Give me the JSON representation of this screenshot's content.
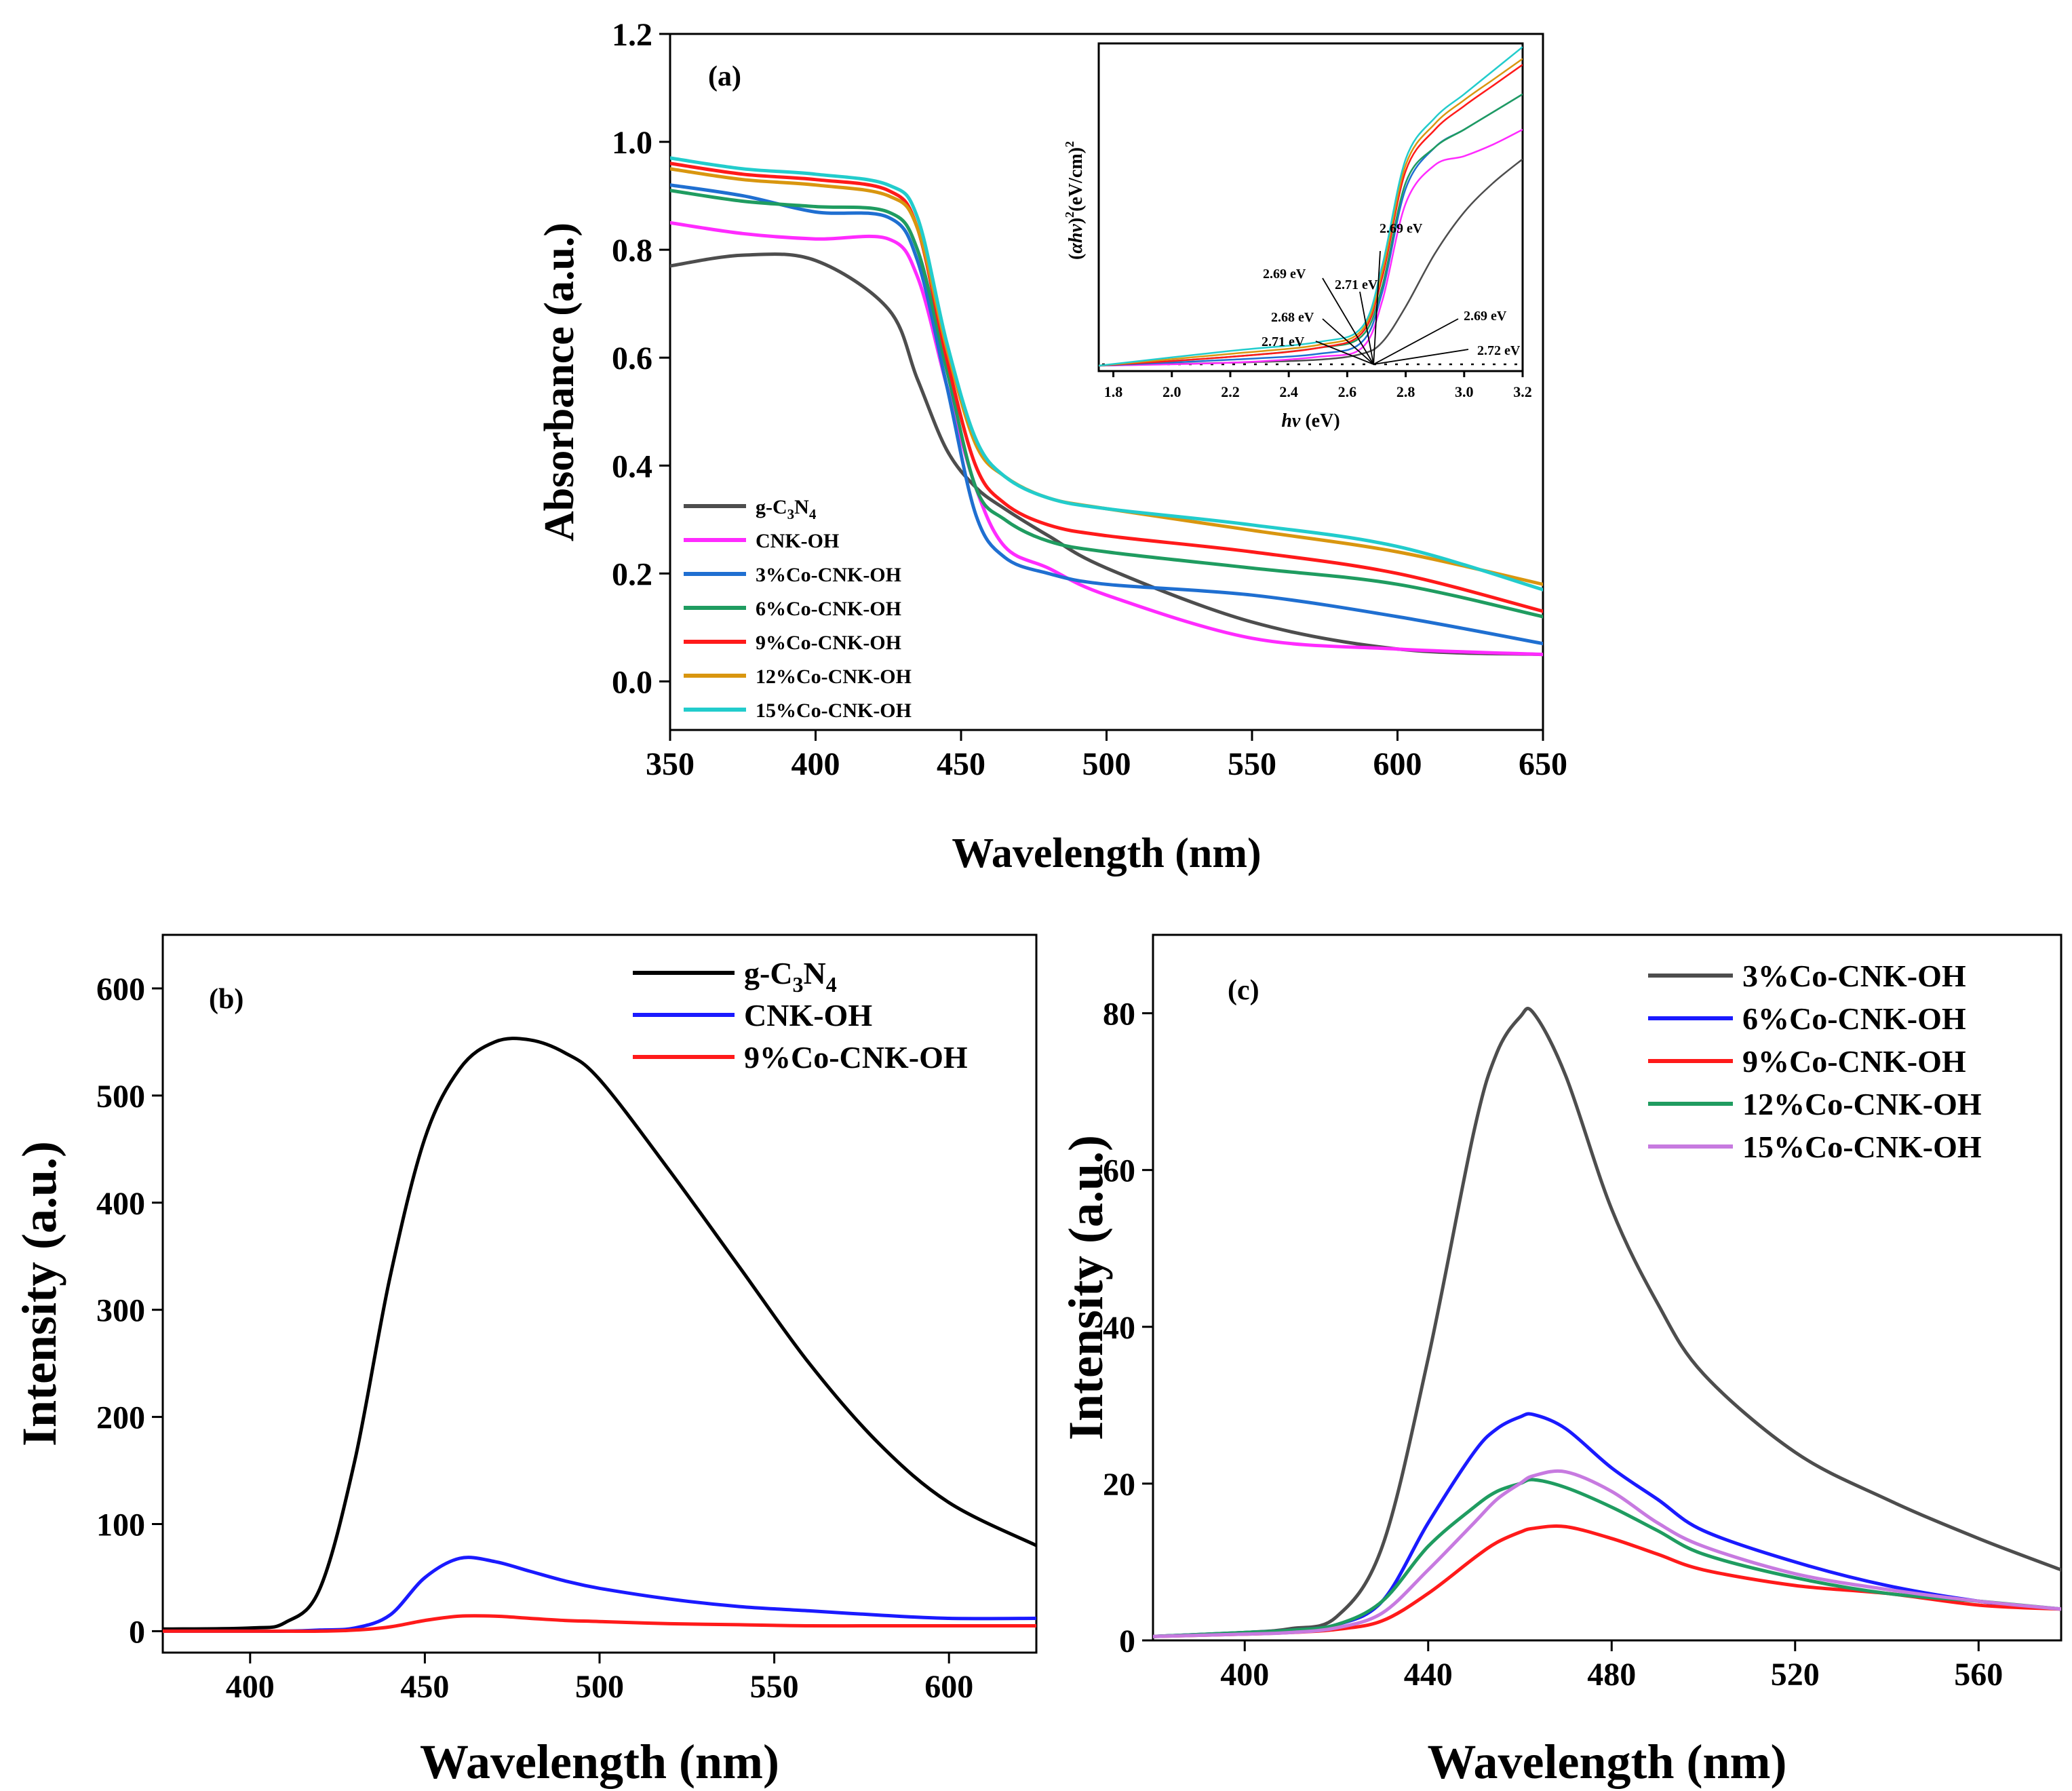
{
  "colors": {
    "gray": "#4d4d4d",
    "magenta": "#ff2bff",
    "blue": "#1f6fd1",
    "green": "#1f9c60",
    "red": "#ff1a1a",
    "orange": "#d9960f",
    "cyan": "#22cccc",
    "black": "#000000",
    "pureblue": "#1a1aff",
    "lavender": "#c77ae0"
  },
  "chart_data": [
    {
      "panel": "(a)",
      "type": "line",
      "title": "",
      "xlabel": "Wavelength (nm)",
      "ylabel": "Absorbance (a.u.)",
      "xlim": [
        350,
        650
      ],
      "ylim": [
        -0.09,
        1.2
      ],
      "xticks": [
        "350",
        "400",
        "450",
        "500",
        "550",
        "600",
        "650"
      ],
      "yticks": [
        "0.0",
        "0.2",
        "0.4",
        "0.6",
        "0.8",
        "1.0",
        "1.2"
      ],
      "xticks_v": [
        350,
        400,
        450,
        500,
        550,
        600,
        650
      ],
      "yticks_v": [
        0.0,
        0.2,
        0.4,
        0.6,
        0.8,
        1.0,
        1.2
      ],
      "legend_position": "bottom-left",
      "x": [
        350,
        375,
        400,
        425,
        435,
        445,
        455,
        465,
        480,
        500,
        550,
        600,
        650
      ],
      "series": [
        {
          "name": "g-C3N4",
          "color": "gray",
          "values": [
            0.77,
            0.79,
            0.78,
            0.69,
            0.56,
            0.43,
            0.36,
            0.32,
            0.27,
            0.21,
            0.11,
            0.06,
            0.05
          ]
        },
        {
          "name": "CNK-OH",
          "color": "magenta",
          "values": [
            0.85,
            0.83,
            0.82,
            0.82,
            0.75,
            0.55,
            0.36,
            0.25,
            0.21,
            0.16,
            0.08,
            0.06,
            0.05
          ]
        },
        {
          "name": "3%Co-CNK-OH",
          "color": "blue",
          "values": [
            0.92,
            0.9,
            0.87,
            0.86,
            0.78,
            0.55,
            0.31,
            0.23,
            0.2,
            0.18,
            0.16,
            0.12,
            0.07
          ]
        },
        {
          "name": "6%Co-CNK-OH",
          "color": "green",
          "values": [
            0.91,
            0.89,
            0.88,
            0.87,
            0.8,
            0.58,
            0.36,
            0.3,
            0.26,
            0.24,
            0.21,
            0.18,
            0.12
          ]
        },
        {
          "name": "9%Co-CNK-OH",
          "color": "red",
          "values": [
            0.96,
            0.94,
            0.93,
            0.91,
            0.84,
            0.6,
            0.4,
            0.33,
            0.29,
            0.27,
            0.24,
            0.2,
            0.13
          ]
        },
        {
          "name": "12%Co-CNK-OH",
          "color": "orange",
          "values": [
            0.95,
            0.93,
            0.92,
            0.9,
            0.84,
            0.62,
            0.44,
            0.38,
            0.34,
            0.32,
            0.28,
            0.24,
            0.18
          ]
        },
        {
          "name": "15%Co-CNK-OH",
          "color": "cyan",
          "values": [
            0.97,
            0.95,
            0.94,
            0.92,
            0.86,
            0.63,
            0.45,
            0.38,
            0.34,
            0.32,
            0.29,
            0.25,
            0.17
          ]
        }
      ],
      "legend_labels": [
        {
          "pre": "g-C",
          "sub1": "3",
          "mid": "N",
          "sub2": "4"
        },
        {
          "text": "CNK-OH"
        },
        {
          "text": "3%Co-CNK-OH"
        },
        {
          "text": "6%Co-CNK-OH"
        },
        {
          "text": "9%Co-CNK-OH"
        },
        {
          "text": "12%Co-CNK-OH"
        },
        {
          "text": "15%Co-CNK-OH"
        }
      ],
      "inset": {
        "type": "line",
        "xlabel_italic": "hv",
        "xlabel_rest": " (eV)",
        "ylabel_parts": {
          "open": "(",
          "italic": "αhv",
          "close": ")",
          "sup1": "2",
          "mid": "(eV/cm)",
          "sup2": "2"
        },
        "xlim": [
          1.75,
          3.2
        ],
        "ylim": [
          0,
          1.0
        ],
        "xticks": [
          "1.8",
          "2.0",
          "2.2",
          "2.4",
          "2.6",
          "2.8",
          "3.0",
          "3.2"
        ],
        "xticks_v": [
          1.8,
          2.0,
          2.2,
          2.4,
          2.6,
          2.8,
          3.0,
          3.2
        ],
        "x": [
          1.75,
          2.2,
          2.5,
          2.65,
          2.72,
          2.8,
          2.9,
          3.0,
          3.1,
          3.2
        ],
        "series": [
          {
            "name": "g-C3N4",
            "color": "gray",
            "values": [
              0.0,
              0.01,
              0.02,
              0.04,
              0.08,
              0.2,
              0.38,
              0.52,
              0.62,
              0.7
            ]
          },
          {
            "name": "CNK-OH",
            "color": "magenta",
            "values": [
              0.0,
              0.01,
              0.03,
              0.06,
              0.22,
              0.55,
              0.68,
              0.71,
              0.75,
              0.8
            ]
          },
          {
            "name": "3%Co-CNK-OH",
            "color": "blue",
            "values": [
              0.0,
              0.02,
              0.04,
              0.08,
              0.25,
              0.6,
              0.74,
              0.8,
              0.86,
              0.92
            ]
          },
          {
            "name": "6%Co-CNK-OH",
            "color": "green",
            "values": [
              0.0,
              0.03,
              0.06,
              0.1,
              0.27,
              0.62,
              0.74,
              0.8,
              0.86,
              0.92
            ]
          },
          {
            "name": "9%Co-CNK-OH",
            "color": "red",
            "values": [
              0.0,
              0.03,
              0.06,
              0.11,
              0.3,
              0.66,
              0.8,
              0.88,
              0.95,
              1.02
            ]
          },
          {
            "name": "12%Co-CNK-OH",
            "color": "orange",
            "values": [
              0.0,
              0.04,
              0.07,
              0.12,
              0.32,
              0.68,
              0.82,
              0.9,
              0.97,
              1.04
            ]
          },
          {
            "name": "15%Co-CNK-OH",
            "color": "cyan",
            "values": [
              0.0,
              0.05,
              0.08,
              0.13,
              0.34,
              0.7,
              0.84,
              0.92,
              1.0,
              1.08
            ]
          }
        ],
        "annotations": [
          "2.69 eV",
          "2.69 eV",
          "2.71 eV",
          "2.68 eV",
          "2.71 eV",
          "2.69 eV",
          "2.72 eV"
        ],
        "converge_x": 2.69
      }
    },
    {
      "panel": "(b)",
      "type": "line",
      "xlabel": "Wavelength (nm)",
      "ylabel": "Intensity (a.u.)",
      "xlim": [
        375,
        625
      ],
      "ylim": [
        -20,
        650
      ],
      "xticks": [
        "400",
        "450",
        "500",
        "550",
        "600"
      ],
      "yticks": [
        "0",
        "100",
        "200",
        "300",
        "400",
        "500",
        "600"
      ],
      "xticks_v": [
        400,
        450,
        500,
        550,
        600
      ],
      "yticks_v": [
        0,
        100,
        200,
        300,
        400,
        500,
        600
      ],
      "legend_position": "top-right",
      "x": [
        375,
        400,
        410,
        420,
        430,
        440,
        450,
        460,
        470,
        480,
        490,
        500,
        520,
        540,
        560,
        580,
        600,
        625
      ],
      "series": [
        {
          "name": "g-C3N4",
          "color": "black",
          "values": [
            2,
            3,
            8,
            40,
            160,
            330,
            460,
            525,
            550,
            552,
            540,
            515,
            430,
            340,
            250,
            175,
            120,
            80
          ]
        },
        {
          "name": "CNK-OH",
          "color": "pureblue",
          "values": [
            0,
            0,
            0,
            1,
            3,
            15,
            50,
            68,
            65,
            56,
            47,
            40,
            30,
            23,
            19,
            15,
            12,
            12
          ]
        },
        {
          "name": "9%Co-CNK-OH",
          "color": "red",
          "values": [
            0,
            0,
            0,
            0,
            1,
            4,
            10,
            14,
            14,
            12,
            10,
            9,
            7,
            6,
            5,
            5,
            5,
            5
          ]
        }
      ],
      "legend_labels": [
        {
          "pre": "g-C",
          "sub1": "3",
          "mid": "N",
          "sub2": "4"
        },
        {
          "text": "CNK-OH"
        },
        {
          "text": "9%Co-CNK-OH"
        }
      ]
    },
    {
      "panel": "(c)",
      "type": "line",
      "xlabel": "Wavelength (nm)",
      "ylabel": "Intensity (a.u.)",
      "xlim": [
        380,
        578
      ],
      "ylim": [
        0,
        90
      ],
      "xticks": [
        "400",
        "440",
        "480",
        "520",
        "560"
      ],
      "yticks": [
        "0",
        "20",
        "40",
        "60",
        "80"
      ],
      "xticks_v": [
        400,
        440,
        480,
        520,
        560
      ],
      "yticks_v": [
        0,
        20,
        40,
        60,
        80
      ],
      "legend_position": "top-right",
      "x": [
        380,
        400,
        410,
        420,
        430,
        440,
        450,
        455,
        460,
        463,
        470,
        480,
        490,
        500,
        520,
        540,
        560,
        578
      ],
      "series": [
        {
          "name": "3%Co-CNK-OH",
          "color": "gray",
          "values": [
            0.5,
            1,
            1.5,
            3,
            12,
            36,
            65,
            75,
            79.5,
            80,
            72,
            55,
            43,
            34,
            24,
            18,
            13,
            9
          ]
        },
        {
          "name": "6%Co-CNK-OH",
          "color": "pureblue",
          "values": [
            0.5,
            1,
            1.3,
            2,
            5,
            15,
            24,
            27,
            28.5,
            28.8,
            27,
            22,
            18,
            14,
            10,
            7,
            5,
            4
          ]
        },
        {
          "name": "9%Co-CNK-OH",
          "color": "red",
          "values": [
            0.5,
            0.8,
            1,
            1.4,
            2.5,
            6,
            10.5,
            12.5,
            13.8,
            14.3,
            14.5,
            13,
            11,
            9,
            7,
            6,
            4.5,
            4
          ]
        },
        {
          "name": "12%Co-CNK-OH",
          "color": "green",
          "values": [
            0.5,
            1,
            1.3,
            2,
            5,
            12,
            17,
            19,
            20,
            20.5,
            19.5,
            17,
            14,
            11,
            8,
            6,
            5,
            4
          ]
        },
        {
          "name": "15%Co-CNK-OH",
          "color": "lavender",
          "values": [
            0.5,
            0.8,
            1,
            1.6,
            3.5,
            9,
            15,
            18,
            20,
            21,
            21.5,
            19,
            15,
            12,
            8.5,
            6.5,
            5,
            4
          ]
        }
      ],
      "legend_labels": [
        {
          "text": "3%Co-CNK-OH"
        },
        {
          "text": "6%Co-CNK-OH"
        },
        {
          "text": "9%Co-CNK-OH"
        },
        {
          "text": "12%Co-CNK-OH"
        },
        {
          "text": "15%Co-CNK-OH"
        }
      ]
    }
  ]
}
